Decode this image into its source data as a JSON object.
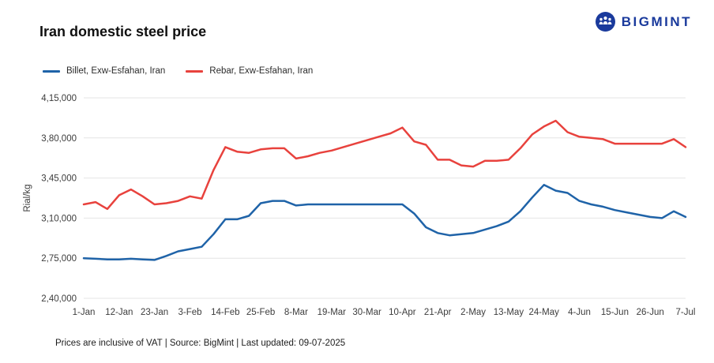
{
  "logo": {
    "text": "BIGMINT",
    "color": "#1a3a9c"
  },
  "header": {
    "title": "Iran domestic steel price"
  },
  "legend": [
    {
      "label": "Billet, Exw-Esfahan, Iran",
      "color": "#1f63a8"
    },
    {
      "label": "Rebar, Exw-Esfahan, Iran",
      "color": "#e8423d"
    }
  ],
  "footer": {
    "text": "Prices are inclusive of VAT | Source: BigMint | Last updated: 09-07-2025"
  },
  "chart_data": {
    "type": "line",
    "title": "Iran domestic steel price",
    "xlabel": "",
    "ylabel": "Rial/kg",
    "ylim": [
      240000,
      415000
    ],
    "grid": "horizontal",
    "legend_position": "top",
    "y_ticks": [
      {
        "value": 240000,
        "label": "2,40,000"
      },
      {
        "value": 275000,
        "label": "2,75,000"
      },
      {
        "value": 310000,
        "label": "3,10,000"
      },
      {
        "value": 345000,
        "label": "3,45,000"
      },
      {
        "value": 380000,
        "label": "3,80,000"
      },
      {
        "value": 415000,
        "label": "4,15,000"
      }
    ],
    "x_tick_labels": [
      "1-Jan",
      "12-Jan",
      "23-Jan",
      "3-Feb",
      "14-Feb",
      "25-Feb",
      "8-Mar",
      "19-Mar",
      "30-Mar",
      "10-Apr",
      "21-Apr",
      "2-May",
      "13-May",
      "24-May",
      "4-Jun",
      "15-Jun",
      "26-Jun",
      "7-Jul"
    ],
    "x_tick_every": 3,
    "series": [
      {
        "name": "Billet, Exw-Esfahan, Iran",
        "color": "#1f63a8",
        "values": [
          275000,
          274500,
          274000,
          274000,
          274500,
          274000,
          273500,
          277000,
          281000,
          283000,
          285000,
          296000,
          309000,
          309000,
          312000,
          323000,
          325000,
          325000,
          321000,
          322000,
          322000,
          322000,
          322000,
          322000,
          322000,
          322000,
          322000,
          322000,
          314000,
          302000,
          297000,
          295000,
          296000,
          297000,
          300000,
          303000,
          307000,
          316000,
          328000,
          339000,
          334000,
          332000,
          325000,
          322000,
          320000,
          317000,
          315000,
          313000,
          311000,
          310000,
          316000,
          311000
        ]
      },
      {
        "name": "Rebar, Exw-Esfahan, Iran",
        "color": "#e8423d",
        "values": [
          322000,
          324000,
          318000,
          330000,
          335000,
          329000,
          322000,
          323000,
          325000,
          329000,
          327000,
          352000,
          372000,
          368000,
          367000,
          370000,
          371000,
          371000,
          362000,
          364000,
          367000,
          369000,
          372000,
          375000,
          378000,
          381000,
          384000,
          389000,
          377000,
          374000,
          361000,
          361000,
          356000,
          355000,
          360000,
          360000,
          361000,
          371000,
          383000,
          390000,
          395000,
          385000,
          381000,
          380000,
          379000,
          375000,
          375000,
          375000,
          375000,
          375000,
          379000,
          372000
        ]
      }
    ]
  }
}
